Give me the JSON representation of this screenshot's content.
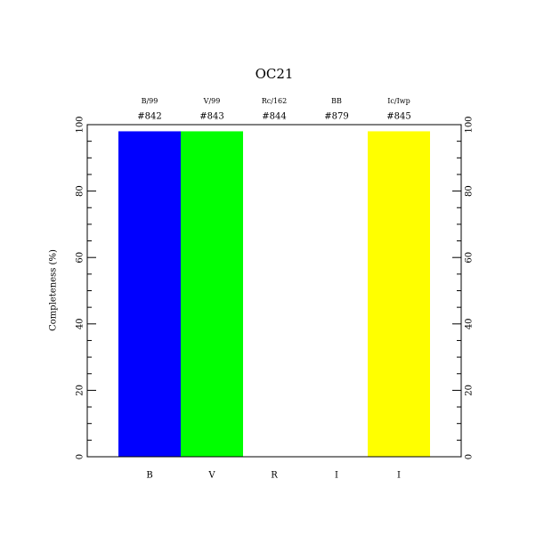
{
  "chart_data": {
    "type": "bar",
    "title": "OC21",
    "categories": [
      "B",
      "V",
      "R",
      "I",
      "I"
    ],
    "filters": [
      "B/99",
      "V/99",
      "Rc/162",
      "BB",
      "Ic/Iwp"
    ],
    "ids": [
      "#842",
      "#843",
      "#844",
      "#879",
      "#845"
    ],
    "values": [
      98,
      98,
      0,
      0,
      98
    ],
    "colors": [
      "#0000ff",
      "#00ff00",
      null,
      null,
      "#ffff00"
    ],
    "ylabel": "Completeness (%)",
    "ylim": [
      0,
      100
    ],
    "yticks": [
      0,
      20,
      40,
      60,
      80,
      100
    ],
    "minor_yticks": [
      5,
      10,
      15,
      25,
      30,
      35,
      45,
      50,
      55,
      65,
      70,
      75,
      85,
      90,
      95
    ]
  }
}
